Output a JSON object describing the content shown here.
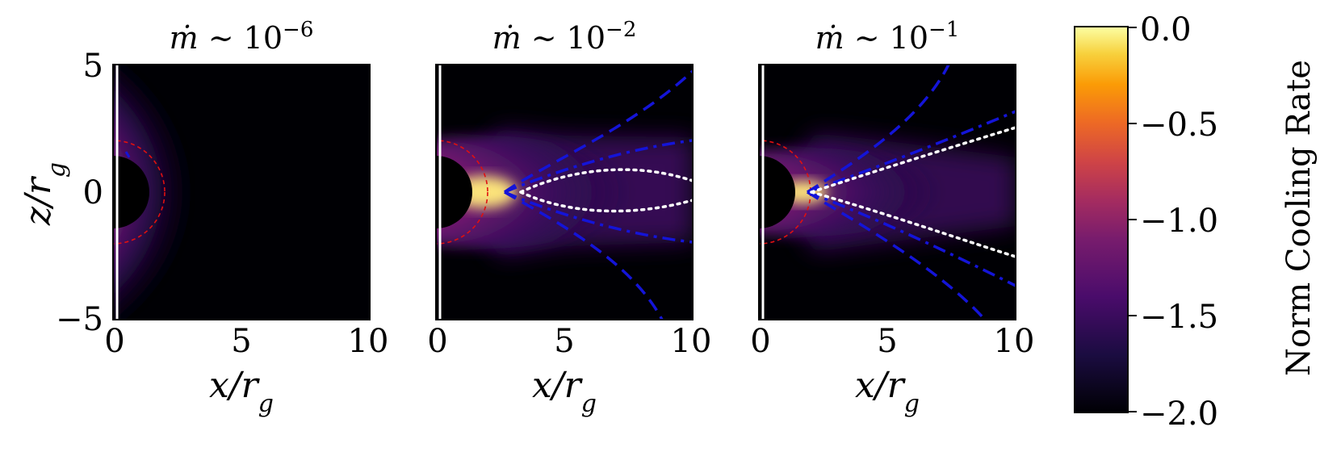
{
  "chart_data": [
    {
      "type": "heatmap",
      "title": "ṁ ∼ 10⁻⁶",
      "xlabel": "x/r_g",
      "ylabel": "z/r_g",
      "xlim": [
        0,
        10
      ],
      "ylim": [
        -5,
        5
      ],
      "xticks": [
        "0",
        "5",
        "10"
      ],
      "yticks": [
        "−5",
        "0",
        "5"
      ]
    },
    {
      "type": "heatmap",
      "title": "ṁ ∼ 10⁻²",
      "xlabel": "x/r_g",
      "xlim": [
        0,
        10
      ],
      "ylim": [
        -5,
        5
      ],
      "xticks": [
        "0",
        "5",
        "10"
      ]
    },
    {
      "type": "heatmap",
      "title": "ṁ ∼ 10⁻¹",
      "xlabel": "x/r_g",
      "xlim": [
        0,
        10
      ],
      "ylim": [
        -5,
        5
      ],
      "xticks": [
        "0",
        "5",
        "10"
      ]
    }
  ],
  "colorbar": {
    "label": "Norm Cooling Rate",
    "range": [
      -2.0,
      0.0
    ],
    "ticks": [
      "0.0",
      "−0.5",
      "−1.0",
      "−1.5",
      "−2.0"
    ],
    "colormap": "inferno"
  },
  "colors": {
    "background": "#000000",
    "dashed_blue": "#1414d8",
    "dotted_white": "#ffffff",
    "horizon_red": "#e01010"
  }
}
